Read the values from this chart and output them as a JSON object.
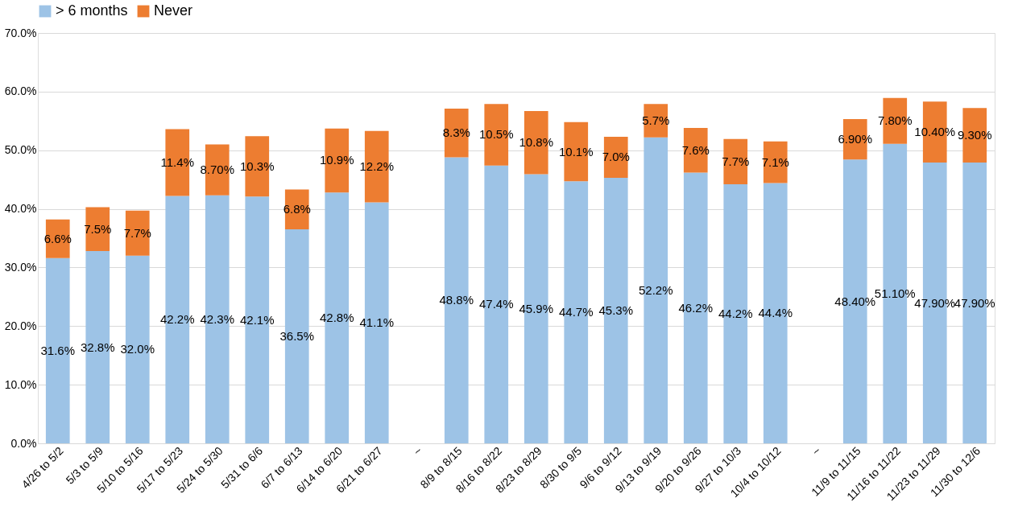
{
  "chart_data": {
    "type": "bar",
    "stacked": true,
    "categories": [
      "4/26 to 5/2",
      "5/3 to 5/9",
      "5/10 to 5/16",
      "5/17 to 5/23",
      "5/24 to 5/30",
      "5/31 to 6/6",
      "6/7 to 6/13",
      "6/14 to 6/20",
      "6/21 to 6/27",
      "~",
      "8/9 to 8/15",
      "8/16 to 8/22",
      "8/23 to 8/29",
      "8/30 to 9/5",
      "9/6 to 9/12",
      "9/13 to 9/19",
      "9/20 to 9/26",
      "9/27 to 10/3",
      "10/4 to 10/12",
      "~",
      "11/9 to 11/15",
      "11/16 to 11/22",
      "11/23 to 11/29",
      "11/30 to 12/6"
    ],
    "series": [
      {
        "name": "> 6 months",
        "color": "#9dc3e6",
        "values": [
          31.6,
          32.8,
          32.0,
          42.2,
          42.3,
          42.1,
          36.5,
          42.8,
          41.1,
          null,
          48.8,
          47.4,
          45.9,
          44.7,
          45.3,
          52.2,
          46.2,
          44.2,
          44.4,
          null,
          48.4,
          51.1,
          47.9,
          47.9
        ],
        "value_labels": [
          "31.6%",
          "32.8%",
          "32.0%",
          "42.2%",
          "42.3%",
          "42.1%",
          "36.5%",
          "42.8%",
          "41.1%",
          null,
          "48.8%",
          "47.4%",
          "45.9%",
          "44.7%",
          "45.3%",
          "52.2%",
          "46.2%",
          "44.2%",
          "44.4%",
          null,
          "48.40%",
          "51.10%",
          "47.90%",
          "47.90%"
        ]
      },
      {
        "name": "Never",
        "color": "#ed7d31",
        "values": [
          6.6,
          7.5,
          7.7,
          11.4,
          8.7,
          10.3,
          6.8,
          10.9,
          12.2,
          null,
          8.3,
          10.5,
          10.8,
          10.1,
          7.0,
          5.7,
          7.6,
          7.7,
          7.1,
          null,
          6.9,
          7.8,
          10.4,
          9.3
        ],
        "value_labels": [
          "6.6%",
          "7.5%",
          "7.7%",
          "11.4%",
          "8.70%",
          "10.3%",
          "6.8%",
          "10.9%",
          "12.2%",
          null,
          "8.3%",
          "10.5%",
          "10.8%",
          "10.1%",
          "7.0%",
          "5.7%",
          "7.6%",
          "7.7%",
          "7.1%",
          null,
          "6.90%",
          "7.80%",
          "10.40%",
          "9.30%"
        ]
      }
    ],
    "ylim": [
      0,
      70
    ],
    "yticks": [
      {
        "value": 0,
        "label": "0.0%"
      },
      {
        "value": 10,
        "label": "10.0%"
      },
      {
        "value": 20,
        "label": "20.0%"
      },
      {
        "value": 30,
        "label": "30.0%"
      },
      {
        "value": 40,
        "label": "40.0%"
      },
      {
        "value": 50,
        "label": "50.0%"
      },
      {
        "value": 60,
        "label": "60.0%"
      },
      {
        "value": 70,
        "label": "70.0%"
      }
    ],
    "grid": "y",
    "legend": "top"
  }
}
